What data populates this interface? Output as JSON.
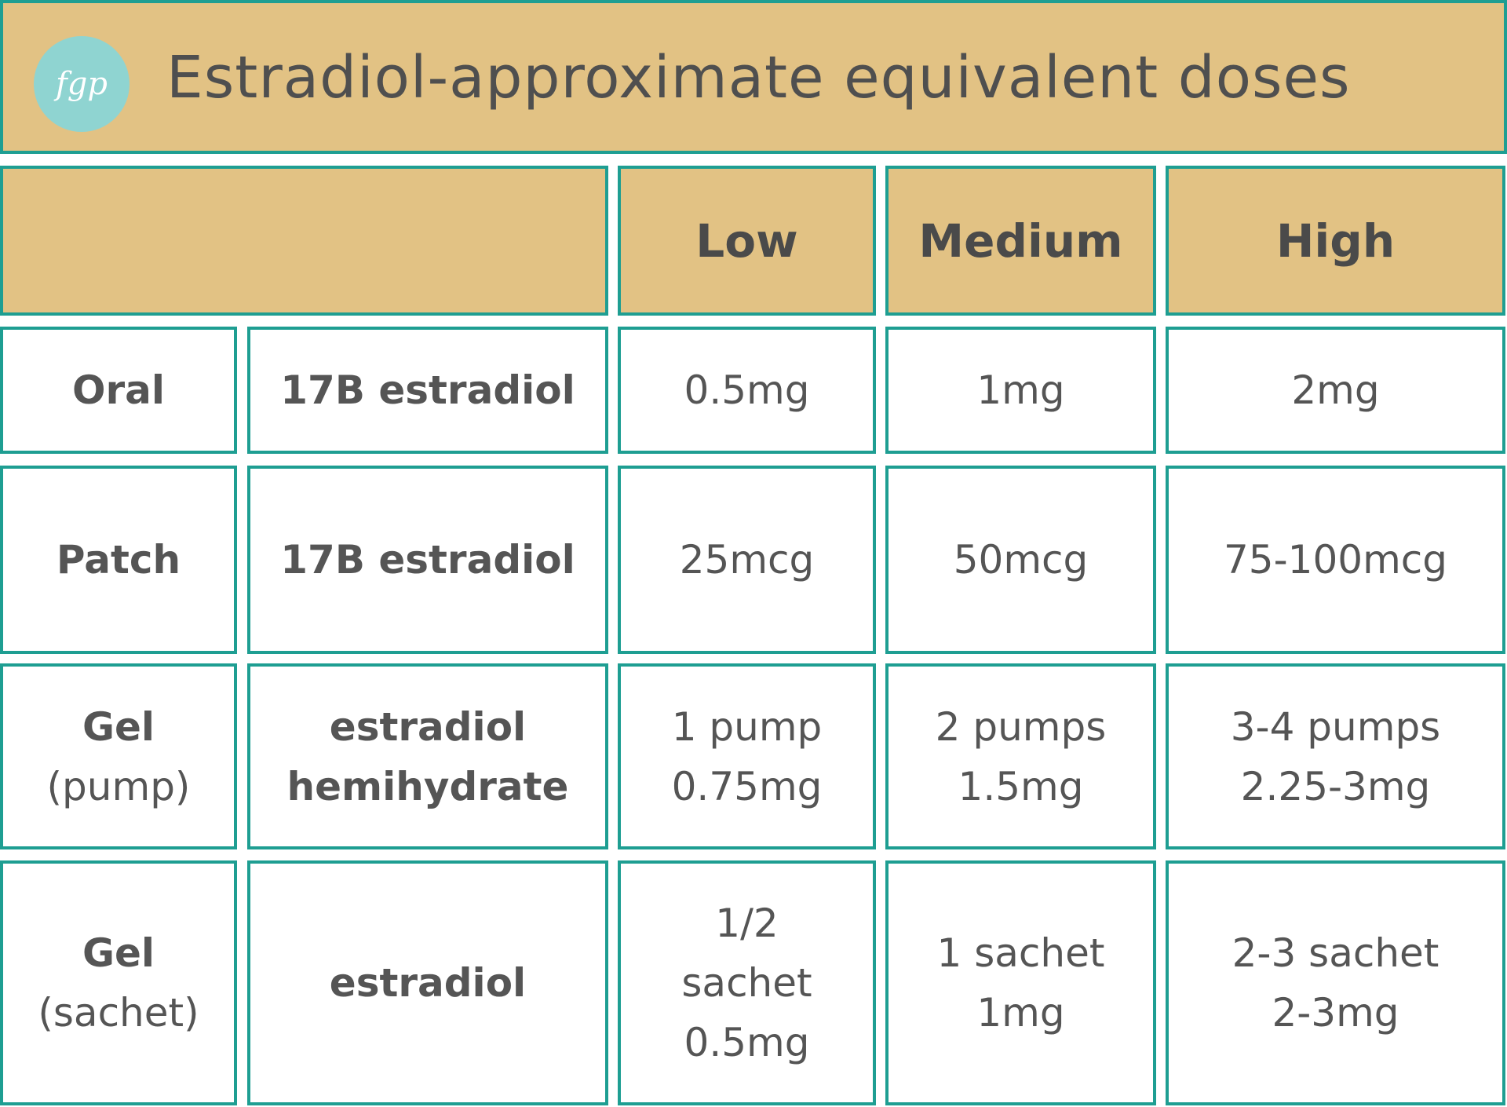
{
  "header": {
    "logo": "fgp",
    "title": "Estradiol-approximate equivalent doses"
  },
  "table": {
    "columns": [
      "Low",
      "Medium",
      "High"
    ],
    "rows": [
      {
        "route": [
          "Oral"
        ],
        "drug": [
          "17B estradiol"
        ],
        "doses": [
          [
            "0.5mg"
          ],
          [
            "1mg"
          ],
          [
            "2mg"
          ]
        ]
      },
      {
        "route": [
          "Patch"
        ],
        "drug": [
          "17B estradiol"
        ],
        "doses": [
          [
            "25mcg"
          ],
          [
            "50mcg"
          ],
          [
            "75-100mcg"
          ]
        ]
      },
      {
        "route": [
          "Gel",
          "(pump)"
        ],
        "drug": [
          "estradiol",
          "hemihydrate"
        ],
        "doses": [
          [
            "1 pump",
            "0.75mg"
          ],
          [
            "2 pumps",
            "1.5mg"
          ],
          [
            "3-4 pumps",
            "2.25-3mg"
          ]
        ]
      },
      {
        "route": [
          "Gel",
          "(sachet)"
        ],
        "drug": [
          "estradiol"
        ],
        "doses": [
          [
            "1/2",
            "sachet",
            "0.5mg"
          ],
          [
            "1 sachet",
            "1mg"
          ],
          [
            "2-3 sachet",
            "2-3mg"
          ]
        ]
      }
    ]
  }
}
